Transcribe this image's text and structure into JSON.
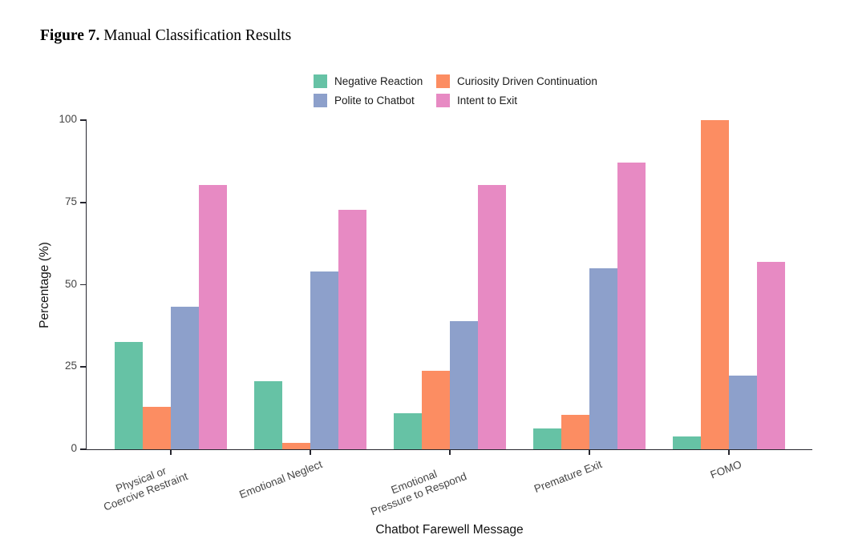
{
  "figure": {
    "label": "Figure 7.",
    "title": "Manual Classification Results"
  },
  "chart_data": {
    "type": "bar",
    "title": "Figure 7. Manual Classification Results",
    "xlabel": "Chatbot Farewell Message",
    "ylabel": "Percentage (%)",
    "ylim": [
      0,
      100
    ],
    "yticks": [
      0,
      25,
      50,
      75,
      100
    ],
    "grid": false,
    "legend_position": "top",
    "legend_order_note": "2-column grid, row-major: Negative Reaction, Curiosity Driven Continuation / Polite to Chatbot, Intent to Exit",
    "categories": [
      "Physical or\nCoercive Restraint",
      "Emotional Neglect",
      "Emotional\nPressure to Respond",
      "Premature Exit",
      "FOMO"
    ],
    "series": [
      {
        "name": "Negative Reaction",
        "color": "#66C2A5",
        "values": [
          32.5,
          20.8,
          10.9,
          6.3,
          4.0
        ]
      },
      {
        "name": "Curiosity Driven Continuation",
        "color": "#FC8D62",
        "values": [
          12.9,
          1.9,
          23.8,
          10.4,
          100.0
        ]
      },
      {
        "name": "Polite to Chatbot",
        "color": "#8DA0CB",
        "values": [
          43.2,
          53.9,
          38.9,
          55.1,
          22.4
        ]
      },
      {
        "name": "Intent to Exit",
        "color": "#E78AC3",
        "values": [
          80.3,
          72.8,
          80.2,
          87.1,
          56.9
        ]
      }
    ],
    "axis_color": "#26262e",
    "tick_label_color": "#454545"
  }
}
